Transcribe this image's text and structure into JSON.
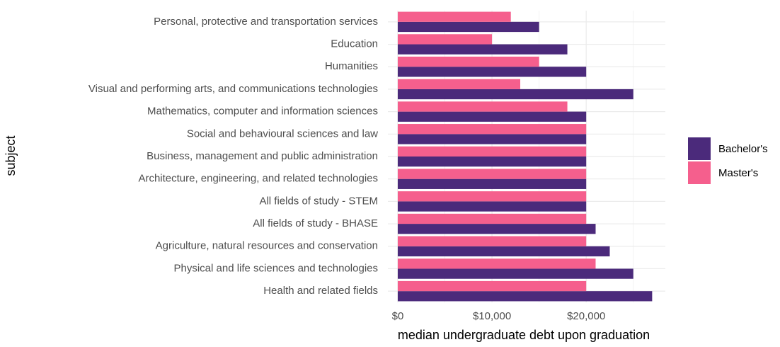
{
  "chart_data": {
    "type": "hbar",
    "x_label": "median undergraduate debt upon graduation",
    "y_label": "subject",
    "categories": [
      "Personal, protective and transportation services",
      "Education",
      "Humanities",
      "Visual and performing arts, and communications technologies",
      "Mathematics, computer and information sciences",
      "Social and behavioural sciences and law",
      "Business, management and public administration",
      "Architecture, engineering, and related technologies",
      "All fields of study - STEM",
      "All fields of study - BHASE",
      "Agriculture, natural resources and conservation",
      "Physical and life sciences and technologies",
      "Health and related fields"
    ],
    "series": [
      {
        "name": "Bachelor's",
        "color": "#4b2a7b",
        "values": [
          15000,
          18000,
          20000,
          25000,
          20000,
          20000,
          20000,
          20000,
          20000,
          21000,
          22500,
          25000,
          27000
        ]
      },
      {
        "name": "Master's",
        "color": "#f55f8d",
        "values": [
          12000,
          10000,
          15000,
          13000,
          18000,
          20000,
          20000,
          20000,
          20000,
          20000,
          20000,
          21000,
          20000
        ]
      }
    ],
    "xlim": [
      -1050,
      28400
    ],
    "xticks": [
      {
        "value": 0,
        "label": "$0"
      },
      {
        "value": 10000,
        "label": "$10,000"
      },
      {
        "value": 20000,
        "label": "$20,000"
      }
    ],
    "xminorticks": [
      5000,
      15000,
      25000
    ],
    "grid": true,
    "legend": "right"
  }
}
